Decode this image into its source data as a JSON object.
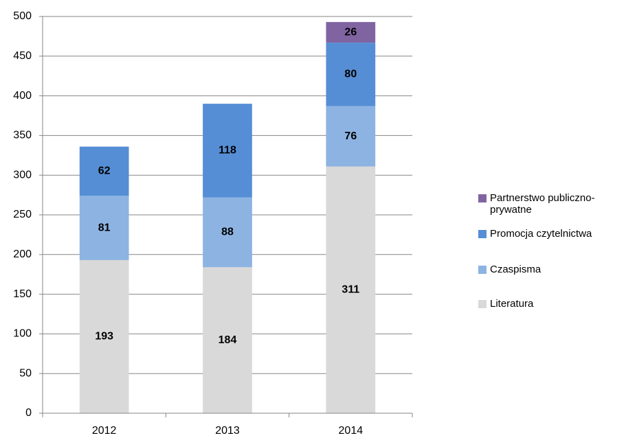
{
  "chart_data": {
    "type": "stacked_bar",
    "categories": [
      "2012",
      "2013",
      "2014"
    ],
    "series": [
      {
        "name": "Literatura",
        "color": "#d9d9d9",
        "values": [
          193,
          184,
          311
        ]
      },
      {
        "name": "Czaspisma",
        "color": "#8db3e2",
        "values": [
          81,
          88,
          76
        ]
      },
      {
        "name": "Promocja czytelnictwa",
        "color": "#558ed5",
        "values": [
          62,
          118,
          80
        ]
      },
      {
        "name": "Partnerstwo publiczno-prywatne",
        "color": "#8064a2",
        "values": [
          null,
          null,
          26
        ]
      }
    ],
    "ylim": [
      0,
      500
    ],
    "yticks": [
      0,
      50,
      100,
      150,
      200,
      250,
      300,
      350,
      400,
      450,
      500
    ],
    "grid": true,
    "legend": "right"
  }
}
